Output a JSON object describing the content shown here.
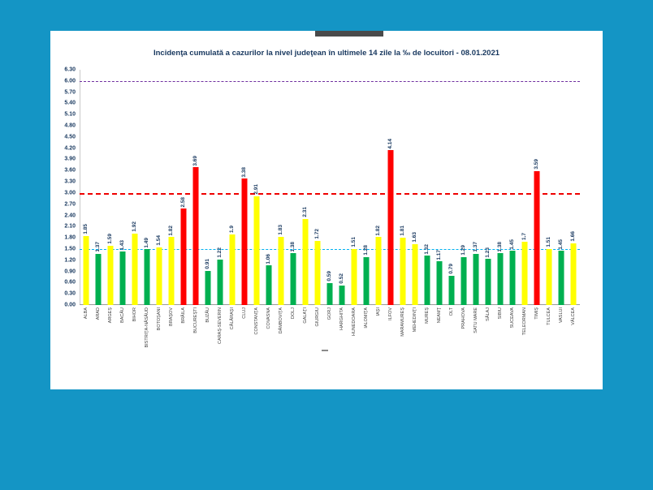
{
  "page": {
    "background_color": "#1495c5",
    "panel_color": "#ffffff"
  },
  "chart_data": {
    "type": "bar",
    "title": "Incidenţa cumulată a cazurilor la nivel judeţean în ultimele 14 zile la ‰ de locuitori - 08.01.2021",
    "xlabel": "",
    "ylabel": "",
    "ylim": [
      0,
      6.3
    ],
    "ytick_step": 0.3,
    "yticks": [
      "0.00",
      "0.30",
      "0.60",
      "0.90",
      "1.20",
      "1.50",
      "1.80",
      "2.10",
      "2.40",
      "2.70",
      "3.00",
      "3.30",
      "3.60",
      "3.90",
      "4.20",
      "4.50",
      "4.80",
      "5.10",
      "5.40",
      "5.70",
      "6.00",
      "6.30"
    ],
    "grid": false,
    "legend": "none",
    "reference_lines": [
      {
        "value": 6.0,
        "label": "6.00",
        "color": "#7030a0",
        "style": "dashed"
      },
      {
        "value": 3.0,
        "label": "3.00",
        "color": "#ee0000",
        "style": "dashed"
      },
      {
        "value": 1.5,
        "label": "1.50",
        "color": "#00b0f0",
        "style": "dashed"
      }
    ],
    "categories": [
      "ALBA",
      "ARAD",
      "ARGEŞ",
      "BACĂU",
      "BIHOR",
      "BISTRIŢA-NĂSĂUD",
      "BOTOŞANI",
      "BRAŞOV",
      "BRĂILA",
      "BUCUREŞTI",
      "BUZĂU",
      "CARAŞ-SEVERIN",
      "CĂLĂRAŞI",
      "CLUJ",
      "CONSTANŢA",
      "COVASNA",
      "DÂMBOVIŢA",
      "DOLJ",
      "GALAŢI",
      "GIURGIU",
      "GORJ",
      "HARGHITA",
      "HUNEDOARA",
      "IALOMIŢA",
      "IAŞI",
      "ILFOV",
      "MARAMUREŞ",
      "MEHEDINŢI",
      "MUREŞ",
      "NEAMŢ",
      "OLT",
      "PRAHOVA",
      "SATU MARE",
      "SĂLAJ",
      "SIBIU",
      "SUCEAVA",
      "TELEORMAN",
      "TIMIŞ",
      "TULCEA",
      "VASLUI",
      "VÂLCEA"
    ],
    "values": [
      "1.85",
      "1.37",
      "1.59",
      "1.43",
      "1.92",
      "1.49",
      "1.54",
      "1.82",
      "2.58",
      "3.69",
      "0.91",
      "1.22",
      "1.9",
      "3.38",
      "2.91",
      "1.06",
      "1.83",
      "1.38",
      "2.31",
      "1.72",
      "0.59",
      "0.52",
      "1.51",
      "1.28",
      "1.82",
      "4.14",
      "1.81",
      "1.63",
      "1.32",
      "1.17",
      "0.79",
      "1.29",
      "1.37",
      "1.23",
      "1.38",
      "1.45",
      "1.7",
      "3.59",
      "1.51",
      "1.45",
      "1.66"
    ],
    "bar_colors": [
      "yellow",
      "green",
      "yellow",
      "green",
      "yellow",
      "green",
      "yellow",
      "yellow",
      "red",
      "red",
      "green",
      "green",
      "yellow",
      "red",
      "yellow",
      "green",
      "yellow",
      "green",
      "yellow",
      "yellow",
      "green",
      "green",
      "yellow",
      "green",
      "yellow",
      "red",
      "yellow",
      "yellow",
      "green",
      "green",
      "green",
      "green",
      "green",
      "green",
      "green",
      "green",
      "yellow",
      "red",
      "yellow",
      "green",
      "yellow"
    ],
    "palette": {
      "green": "#00b050",
      "yellow": "#ffff00",
      "red": "#ff0000"
    }
  }
}
